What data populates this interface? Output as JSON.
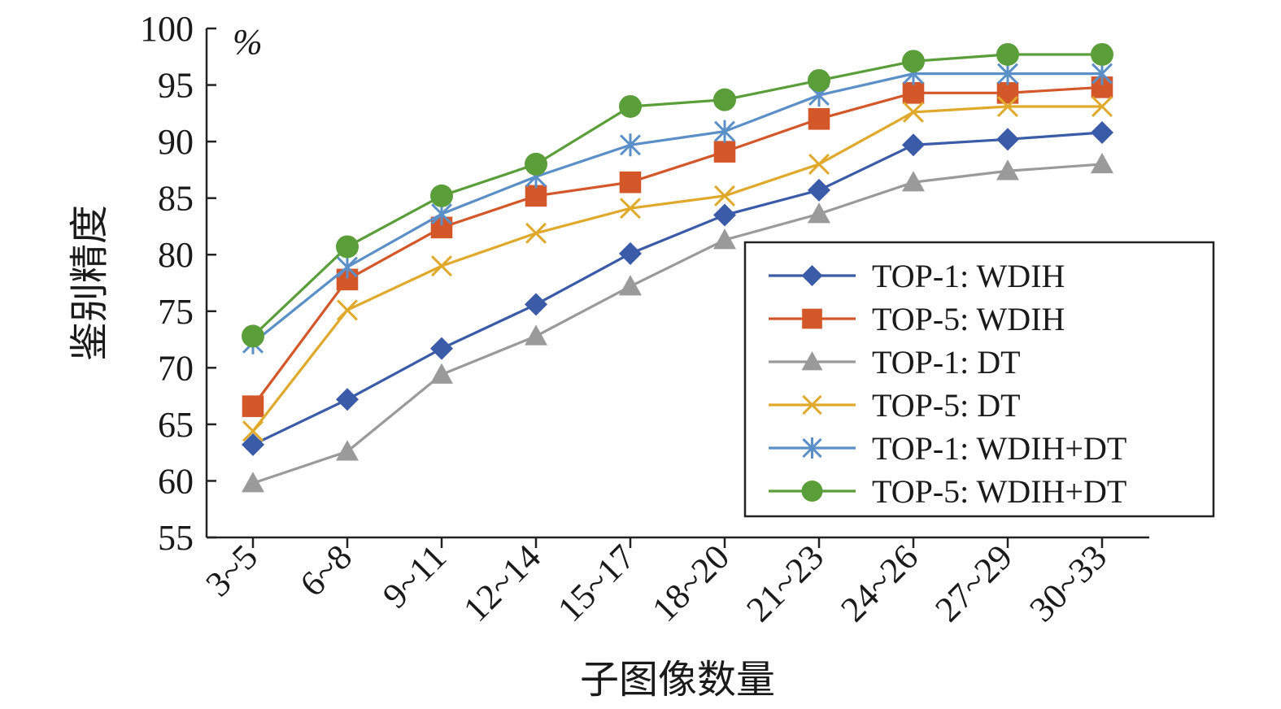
{
  "chart_data": {
    "type": "line",
    "xlabel": "子图像数量",
    "ylabel": "鉴别精度",
    "unit": "%",
    "ylim": [
      55,
      100
    ],
    "yticks": [
      55,
      60,
      65,
      70,
      75,
      80,
      85,
      90,
      95,
      100
    ],
    "categories": [
      "3~5",
      "6~8",
      "9~11",
      "12~14",
      "15~17",
      "18~20",
      "21~23",
      "24~26",
      "27~29",
      "30~33"
    ],
    "legend_position": "right",
    "series": [
      {
        "name": "TOP-1: WDIH",
        "color": "#3a5ba8",
        "marker": "diamond",
        "values": [
          63.2,
          67.2,
          71.7,
          75.6,
          80.1,
          83.5,
          85.7,
          89.7,
          90.2,
          90.8
        ]
      },
      {
        "name": "TOP-5: WDIH",
        "color": "#d4572a",
        "marker": "square",
        "values": [
          66.6,
          77.8,
          82.4,
          85.2,
          86.4,
          89.1,
          92.0,
          94.3,
          94.3,
          94.8
        ]
      },
      {
        "name": "TOP-1: DT",
        "color": "#9a9a9a",
        "marker": "triangle",
        "values": [
          59.8,
          62.6,
          69.4,
          72.8,
          77.2,
          81.3,
          83.6,
          86.4,
          87.4,
          88.0
        ]
      },
      {
        "name": "TOP-5: DT",
        "color": "#e0a92c",
        "marker": "x",
        "values": [
          64.4,
          75.1,
          79.0,
          81.9,
          84.1,
          85.2,
          88.0,
          92.6,
          93.1,
          93.1
        ]
      },
      {
        "name": "TOP-1: WDIH+DT",
        "color": "#5a8fc8",
        "marker": "asterisk",
        "values": [
          72.2,
          78.9,
          83.6,
          86.9,
          89.7,
          90.9,
          94.1,
          96.0,
          96.0,
          96.0
        ]
      },
      {
        "name": "TOP-5: WDIH+DT",
        "color": "#5a9e3a",
        "marker": "circle",
        "values": [
          72.8,
          80.7,
          85.2,
          88.0,
          93.1,
          93.7,
          95.4,
          97.1,
          97.7,
          97.7
        ]
      }
    ]
  }
}
